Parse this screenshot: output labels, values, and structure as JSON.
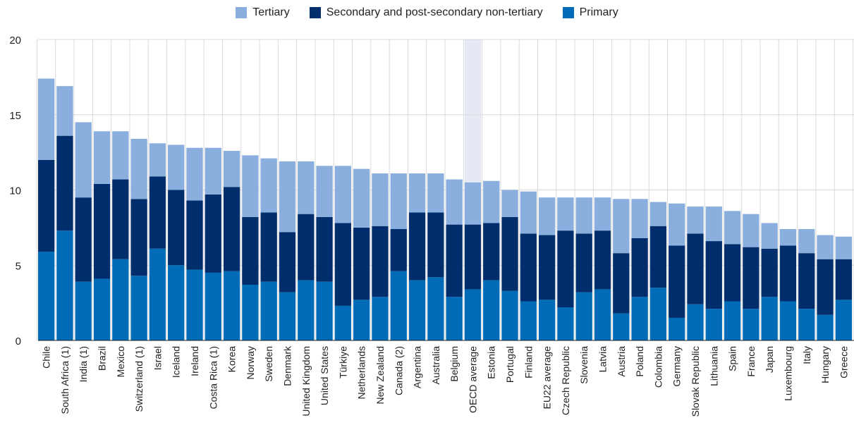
{
  "colors": {
    "tertiary": "#8AAEDD",
    "secondary": "#002D6B",
    "primary": "#006BB6",
    "highlight": "#E6E9F4",
    "grid": "#DADADA"
  },
  "chart_data": {
    "type": "bar",
    "stacked": true,
    "ylim": [
      0,
      20
    ],
    "yticks": [
      "0",
      "5",
      "10",
      "15",
      "20"
    ],
    "grid": true,
    "legend_position": "top-center",
    "highlighted_category": "OECD average",
    "categories": [
      "Chile",
      "South Africa (1)",
      "India (1)",
      "Brazil",
      "Mexico",
      "Switzerland (1)",
      "Israel",
      "Iceland",
      "Ireland",
      "Costa Rica (1)",
      "Korea",
      "Norway",
      "Sweden",
      "Denmark",
      "United Kingdom",
      "United States",
      "Türkiye",
      "Netherlands",
      "New Zealand",
      "Canada (2)",
      "Argentina",
      "Australia",
      "Belgium",
      "OECD average",
      "Estonia",
      "Portugal",
      "Finland",
      "EU22 average",
      "Czech Republic",
      "Slovenia",
      "Latvia",
      "Austria",
      "Poland",
      "Colombia",
      "Germany",
      "Slovak Republic",
      "Lithuania",
      "Spain",
      "France",
      "Japan",
      "Luxembourg",
      "Italy",
      "Hungary",
      "Greece"
    ],
    "series": [
      {
        "name": "Primary",
        "key": "primary",
        "values": [
          5.9,
          7.3,
          3.9,
          4.1,
          5.4,
          4.3,
          6.1,
          5.0,
          4.7,
          4.5,
          4.6,
          3.7,
          3.9,
          3.2,
          4.0,
          3.9,
          2.3,
          2.7,
          2.9,
          4.6,
          4.0,
          4.2,
          2.9,
          3.4,
          4.0,
          3.3,
          2.6,
          2.7,
          2.2,
          3.2,
          3.4,
          1.8,
          2.9,
          3.5,
          1.5,
          2.4,
          2.1,
          2.6,
          2.1,
          2.9,
          2.6,
          2.1,
          1.7,
          2.7
        ]
      },
      {
        "name": "Secondary and post-secondary non-tertiary",
        "key": "secondary",
        "values": [
          6.1,
          6.3,
          5.6,
          6.3,
          5.3,
          5.1,
          4.8,
          5.0,
          4.6,
          5.2,
          5.6,
          4.5,
          4.6,
          4.0,
          4.4,
          4.3,
          5.5,
          4.8,
          4.7,
          2.8,
          4.5,
          4.3,
          4.8,
          4.3,
          3.8,
          4.9,
          4.5,
          4.3,
          5.1,
          3.9,
          3.9,
          4.0,
          3.9,
          4.1,
          4.8,
          4.7,
          4.5,
          3.8,
          4.1,
          3.2,
          3.7,
          3.7,
          3.7,
          2.7
        ]
      },
      {
        "name": "Tertiary",
        "key": "tertiary",
        "values": [
          5.4,
          3.3,
          5.0,
          3.5,
          3.2,
          4.0,
          2.2,
          3.0,
          3.5,
          3.1,
          2.4,
          4.1,
          3.6,
          4.7,
          3.5,
          3.4,
          3.8,
          3.9,
          3.5,
          3.7,
          2.6,
          2.6,
          3.0,
          2.8,
          2.8,
          1.8,
          2.8,
          2.5,
          2.2,
          2.4,
          2.2,
          3.6,
          2.6,
          1.6,
          2.8,
          1.8,
          2.3,
          2.2,
          2.2,
          1.7,
          1.1,
          1.6,
          1.6,
          1.5
        ]
      }
    ]
  },
  "legend": {
    "items": [
      {
        "label": "Tertiary",
        "key": "tertiary"
      },
      {
        "label": "Secondary and post-secondary non-tertiary",
        "key": "secondary"
      },
      {
        "label": "Primary",
        "key": "primary"
      }
    ]
  }
}
